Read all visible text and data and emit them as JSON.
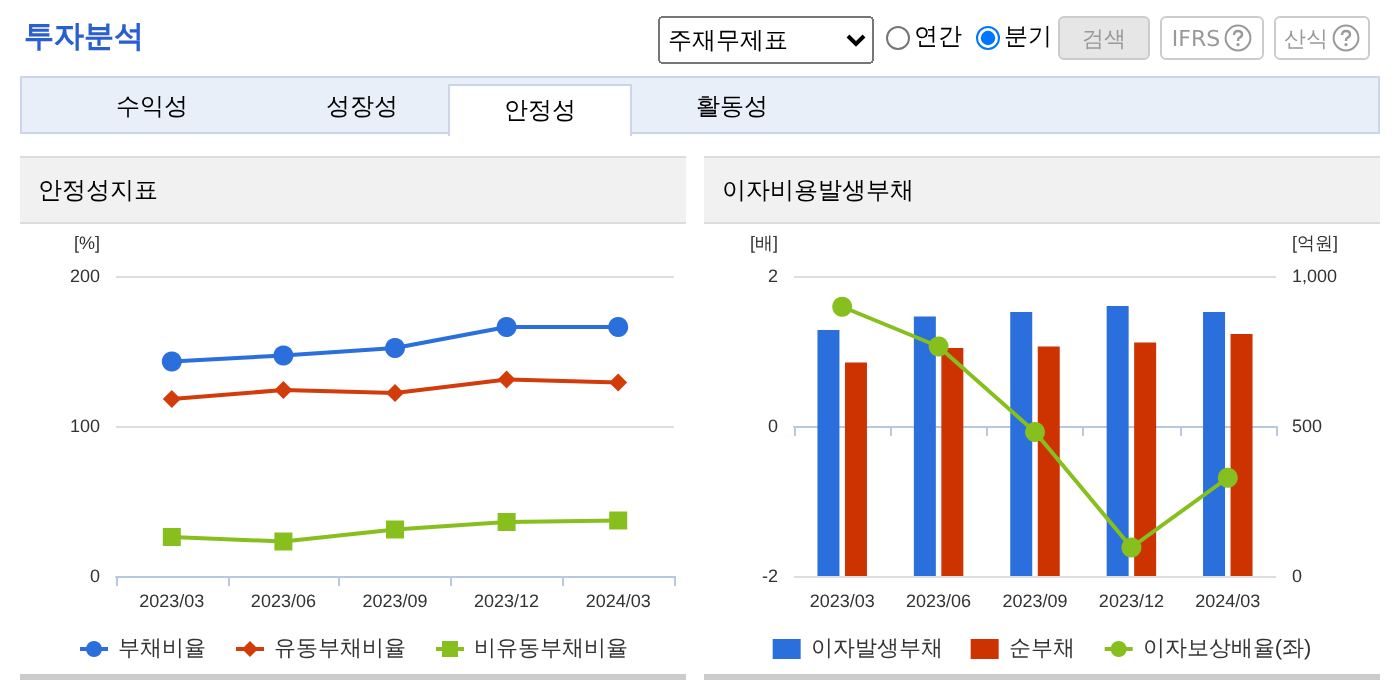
{
  "chart_data": [
    {
      "type": "other",
      "title": "투자분석",
      "annotations": [
        "주재무제표",
        "연간",
        "분기",
        "검색",
        "IFRS",
        "산식",
        "수익성",
        "성장성",
        "안정성",
        "활동성"
      ]
    },
    {
      "type": "line",
      "title": "안정성지표",
      "ylabel": "[%]",
      "categories": [
        "2023/03",
        "2023/06",
        "2023/09",
        "2023/12",
        "2024/03"
      ],
      "ylim": [
        0,
        200
      ],
      "yticks": [
        0,
        100,
        200
      ],
      "grid": "y",
      "legend": "bottom",
      "series": [
        {
          "name": "부채비율",
          "color": "#2a6fdb",
          "marker": "circle",
          "values": [
            143,
            147,
            152,
            166,
            166
          ]
        },
        {
          "name": "유동부채비율",
          "color": "#d23c0a",
          "marker": "diamond",
          "values": [
            118,
            124,
            122,
            131,
            129
          ]
        },
        {
          "name": "비유동부채비율",
          "color": "#86bf1e",
          "marker": "square",
          "values": [
            26,
            23,
            31,
            36,
            37
          ]
        }
      ]
    },
    {
      "type": "bar",
      "title": "이자비용발생부채",
      "ylabel": "[배]",
      "y2label": "[억원]",
      "categories": [
        "2023/03",
        "2023/06",
        "2023/09",
        "2023/12",
        "2024/03"
      ],
      "ylim": [
        -2,
        2
      ],
      "yticks": [
        -2,
        0,
        2
      ],
      "y2lim": [
        0,
        1000
      ],
      "y2ticks": [
        0,
        500,
        {
          "value": 1000,
          "label": "1,000"
        }
      ],
      "grid": "y",
      "legend": "bottom",
      "series": [
        {
          "name": "이자발생부채",
          "color": "#2a6fdb",
          "axis": "y2",
          "values": [
            820,
            865,
            880,
            900,
            880
          ]
        },
        {
          "name": "순부채",
          "color": "#cc3300",
          "axis": "y2",
          "values": [
            712,
            760,
            765,
            778,
            807
          ]
        },
        {
          "name": "이자보상배율(좌)",
          "type": "line",
          "color": "#86bf1e",
          "marker": "circle",
          "values": [
            1.59,
            1.06,
            -0.08,
            -1.62,
            -0.69
          ]
        }
      ]
    }
  ]
}
